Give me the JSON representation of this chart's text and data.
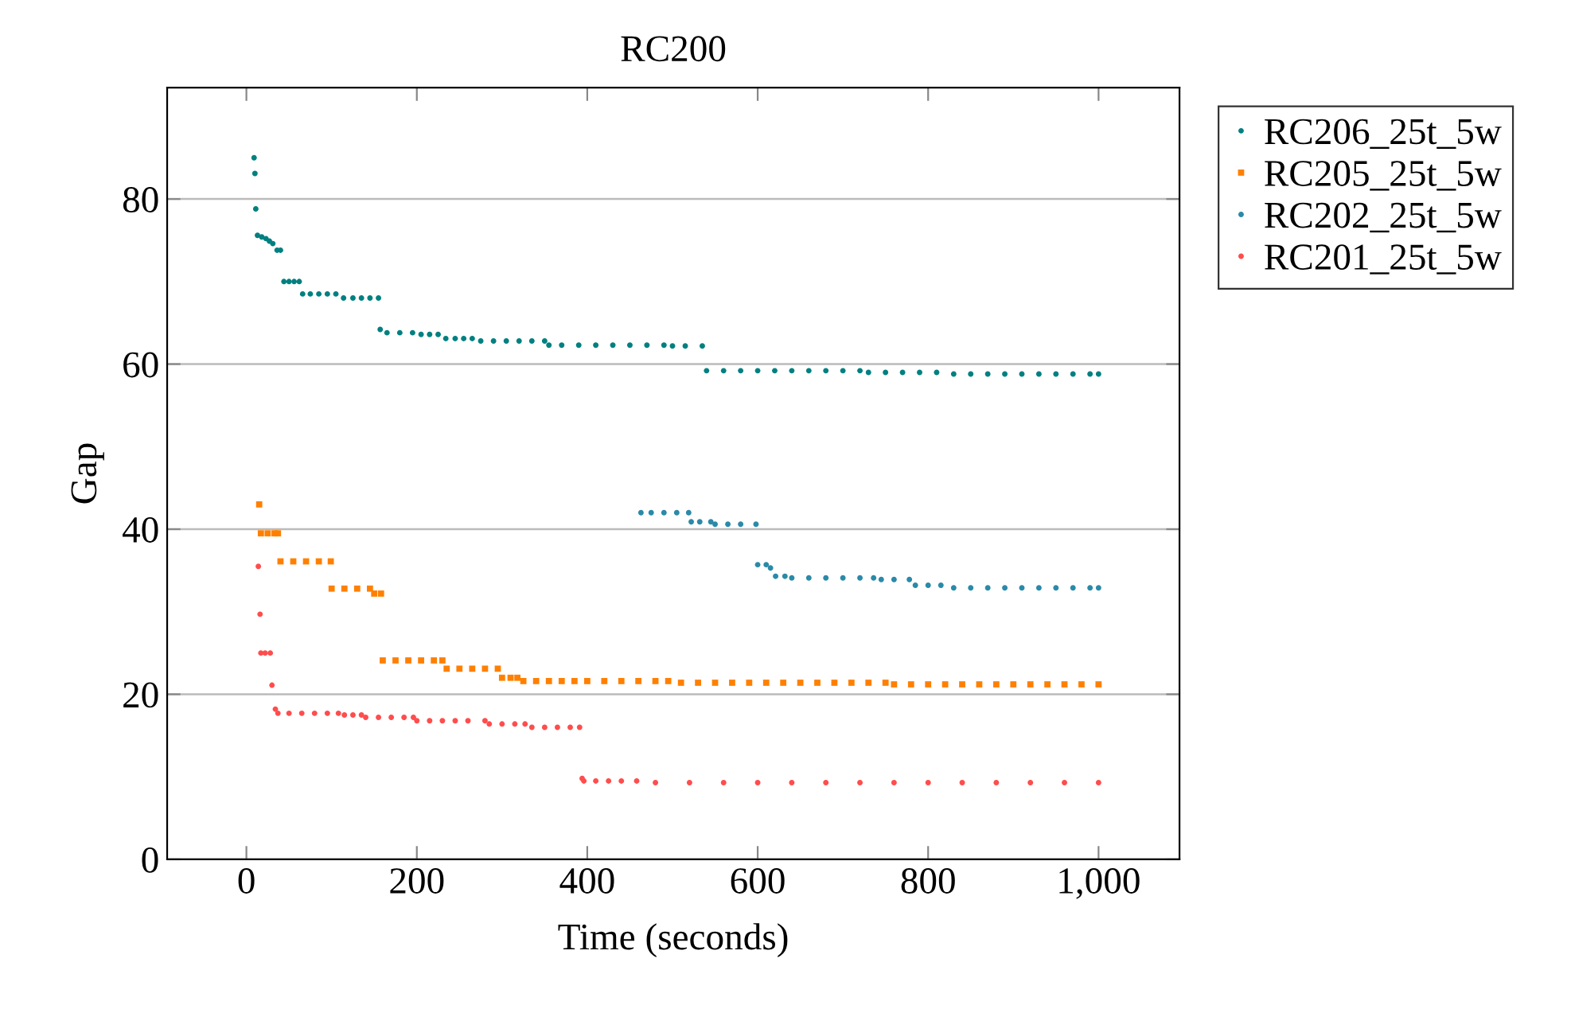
{
  "chart_data": {
    "type": "scatter",
    "title": "RC200",
    "xlabel": "Time (seconds)",
    "ylabel": "Gap",
    "xlim": [
      -93,
      1095
    ],
    "ylim": [
      0,
      93.5
    ],
    "xticks": [
      0,
      200,
      400,
      600,
      800,
      {
        "value": 1000,
        "label": "1,000"
      }
    ],
    "yticks": [
      0,
      20,
      40,
      60,
      80
    ],
    "grid": "y",
    "legend": "top right",
    "series": [
      {
        "name": "RC206_25t_5w",
        "color": "#008080",
        "marker": "circle",
        "x": [
          9,
          10,
          11,
          13,
          18,
          23,
          27,
          31,
          36,
          40,
          44,
          50,
          56,
          62,
          66,
          75,
          85,
          95,
          105,
          114,
          125,
          135,
          145,
          155,
          157,
          165,
          180,
          195,
          205,
          215,
          225,
          234,
          245,
          255,
          265,
          275,
          290,
          305,
          320,
          335,
          350,
          355,
          370,
          390,
          410,
          430,
          450,
          470,
          490,
          500,
          515,
          535,
          540,
          560,
          580,
          600,
          620,
          640,
          660,
          680,
          700,
          720,
          730,
          750,
          770,
          790,
          810,
          830,
          850,
          870,
          890,
          910,
          930,
          950,
          970,
          990,
          1000
        ],
        "values": [
          85.0,
          83.1,
          78.8,
          75.6,
          75.4,
          75.2,
          74.9,
          74.6,
          73.8,
          73.8,
          70.0,
          70.0,
          70.0,
          70.0,
          68.5,
          68.5,
          68.5,
          68.5,
          68.5,
          68.0,
          68.0,
          68.0,
          68.0,
          68.0,
          64.2,
          63.8,
          63.8,
          63.8,
          63.6,
          63.6,
          63.6,
          63.1,
          63.1,
          63.1,
          63.1,
          62.8,
          62.8,
          62.8,
          62.8,
          62.8,
          62.8,
          62.3,
          62.3,
          62.3,
          62.3,
          62.3,
          62.3,
          62.3,
          62.3,
          62.2,
          62.2,
          62.2,
          59.2,
          59.2,
          59.2,
          59.2,
          59.2,
          59.2,
          59.2,
          59.2,
          59.2,
          59.2,
          59.0,
          59.0,
          59.0,
          59.0,
          59.0,
          58.8,
          58.8,
          58.8,
          58.8,
          58.8,
          58.8,
          58.8,
          58.8,
          58.8,
          58.8
        ]
      },
      {
        "name": "RC205_25t_5w",
        "color": "#ff8000",
        "marker": "square",
        "x": [
          15,
          17,
          25,
          33,
          37,
          40,
          55,
          70,
          85,
          99,
          100,
          115,
          130,
          145,
          150,
          158,
          160,
          175,
          190,
          205,
          220,
          230,
          235,
          250,
          265,
          280,
          295,
          300,
          310,
          318,
          325,
          340,
          355,
          370,
          385,
          400,
          420,
          440,
          460,
          480,
          495,
          510,
          530,
          550,
          570,
          590,
          610,
          630,
          650,
          670,
          690,
          710,
          730,
          750,
          760,
          780,
          800,
          820,
          840,
          860,
          880,
          900,
          920,
          940,
          960,
          980,
          1000
        ],
        "values": [
          43.0,
          39.5,
          39.5,
          39.5,
          39.5,
          36.1,
          36.1,
          36.1,
          36.1,
          36.1,
          32.8,
          32.8,
          32.8,
          32.8,
          32.2,
          32.2,
          24.1,
          24.1,
          24.1,
          24.1,
          24.1,
          24.1,
          23.1,
          23.1,
          23.1,
          23.1,
          23.1,
          22.0,
          22.0,
          22.0,
          21.6,
          21.6,
          21.6,
          21.6,
          21.6,
          21.6,
          21.6,
          21.6,
          21.6,
          21.6,
          21.6,
          21.4,
          21.4,
          21.4,
          21.4,
          21.4,
          21.4,
          21.4,
          21.4,
          21.4,
          21.4,
          21.4,
          21.4,
          21.4,
          21.2,
          21.2,
          21.2,
          21.2,
          21.2,
          21.2,
          21.2,
          21.2,
          21.2,
          21.2,
          21.2,
          21.2,
          21.2
        ]
      },
      {
        "name": "RC202_25t_5w",
        "color": "#2a8aa8",
        "marker": "circle",
        "x": [
          463,
          475,
          490,
          505,
          519,
          522,
          532,
          545,
          550,
          565,
          580,
          598,
          600,
          610,
          615,
          621,
          632,
          640,
          660,
          680,
          700,
          720,
          736,
          745,
          760,
          778,
          785,
          800,
          815,
          830,
          850,
          870,
          890,
          910,
          930,
          950,
          970,
          990,
          1000
        ],
        "values": [
          42.0,
          42.0,
          42.0,
          42.0,
          42.0,
          40.9,
          40.9,
          40.9,
          40.6,
          40.6,
          40.6,
          40.6,
          35.7,
          35.7,
          35.3,
          34.3,
          34.3,
          34.1,
          34.1,
          34.1,
          34.1,
          34.1,
          34.1,
          33.9,
          33.9,
          33.9,
          33.2,
          33.2,
          33.2,
          32.9,
          32.9,
          32.9,
          32.9,
          32.9,
          32.9,
          32.9,
          32.9,
          32.9,
          32.9
        ]
      },
      {
        "name": "RC201_25t_5w",
        "color": "#ff4d4d",
        "marker": "circle",
        "x": [
          14,
          16,
          17,
          22,
          28,
          30,
          34,
          37,
          50,
          65,
          80,
          95,
          108,
          115,
          125,
          135,
          140,
          155,
          170,
          185,
          196,
          200,
          215,
          230,
          245,
          260,
          280,
          285,
          300,
          315,
          327,
          335,
          350,
          365,
          380,
          391,
          394,
          396,
          410,
          425,
          440,
          458,
          480,
          520,
          560,
          600,
          640,
          680,
          720,
          760,
          800,
          840,
          880,
          920,
          960,
          1000
        ],
        "values": [
          35.5,
          29.7,
          25.0,
          25.0,
          25.0,
          21.1,
          18.2,
          17.7,
          17.7,
          17.7,
          17.7,
          17.7,
          17.7,
          17.5,
          17.5,
          17.5,
          17.2,
          17.2,
          17.2,
          17.2,
          17.2,
          16.8,
          16.8,
          16.8,
          16.8,
          16.8,
          16.8,
          16.4,
          16.4,
          16.4,
          16.4,
          16.0,
          16.0,
          16.0,
          16.0,
          16.0,
          9.8,
          9.5,
          9.5,
          9.5,
          9.5,
          9.5,
          9.3,
          9.3,
          9.3,
          9.3,
          9.3,
          9.3,
          9.3,
          9.3,
          9.3,
          9.3,
          9.3,
          9.3,
          9.3,
          9.3
        ]
      }
    ]
  }
}
